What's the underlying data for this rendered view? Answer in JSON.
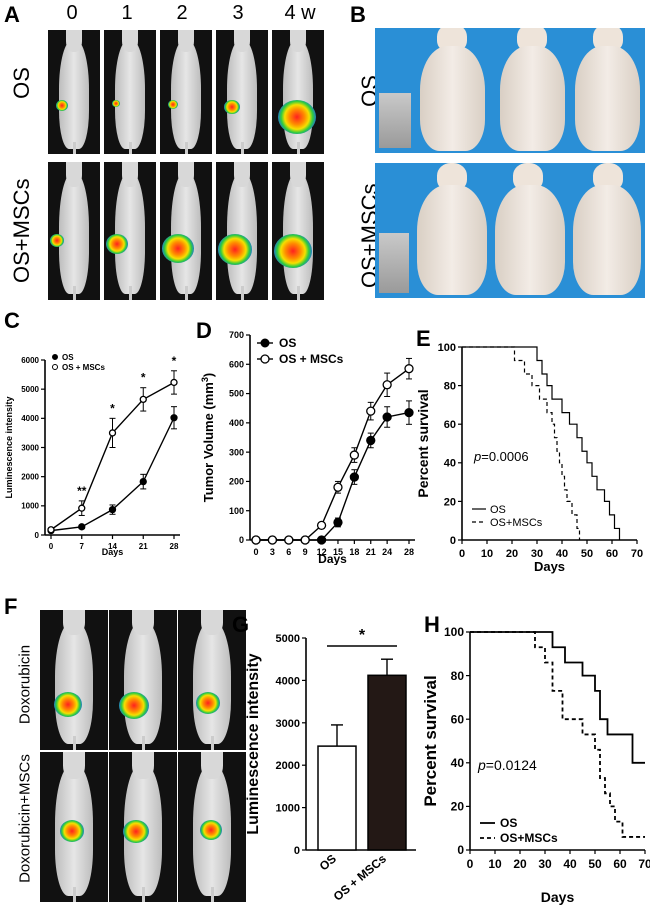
{
  "panels": {
    "A": {
      "letter": "A",
      "weeks": [
        "0",
        "1",
        "2",
        "3",
        "4 w"
      ],
      "row_labels": [
        "OS",
        "OS+MSCs"
      ]
    },
    "B": {
      "letter": "B",
      "row_labels": [
        "OS",
        "OS+MSCs"
      ]
    },
    "F": {
      "letter": "F",
      "row_labels": [
        "Doxorubicin",
        "Doxorubicin+MSCs"
      ]
    }
  },
  "chart_data": [
    {
      "panel": "C",
      "type": "line",
      "xlabel": "Days",
      "ylabel": "Luminescence intensity",
      "x": [
        0,
        7,
        14,
        21,
        28
      ],
      "xticks": [
        "0",
        "7",
        "14",
        "21",
        "28"
      ],
      "ylim": [
        0,
        6000
      ],
      "yticks": [
        "0",
        "1000",
        "2000",
        "3000",
        "4000",
        "5000",
        "6000"
      ],
      "series": [
        {
          "name": "OS",
          "values": [
            150,
            280,
            870,
            1830,
            4020
          ],
          "errors": [
            40,
            60,
            160,
            250,
            380
          ],
          "marker": "filled"
        },
        {
          "name": "OS + MSCs",
          "values": [
            180,
            920,
            3500,
            4650,
            5230
          ],
          "errors": [
            50,
            250,
            500,
            400,
            400
          ],
          "marker": "open"
        }
      ],
      "annotations": [
        "**",
        "*",
        "*",
        "*"
      ],
      "legend_position": "top-left"
    },
    {
      "panel": "D",
      "type": "line",
      "xlabel": "Days",
      "ylabel": "Tumor Volume (mm3)",
      "x": [
        0,
        3,
        6,
        9,
        12,
        15,
        18,
        21,
        24,
        28
      ],
      "xticks": [
        "0",
        "3",
        "6",
        "9",
        "12",
        "15",
        "18",
        "21",
        "24",
        "28"
      ],
      "ylim": [
        0,
        700
      ],
      "yticks": [
        "0",
        "100",
        "200",
        "300",
        "400",
        "500",
        "600",
        "700"
      ],
      "series": [
        {
          "name": "OS",
          "values": [
            0,
            0,
            0,
            0,
            0,
            60,
            215,
            340,
            420,
            435
          ],
          "errors": [
            0,
            0,
            0,
            0,
            0,
            15,
            25,
            25,
            35,
            40
          ],
          "marker": "filled"
        },
        {
          "name": "OS + MSCs",
          "values": [
            0,
            0,
            0,
            0,
            50,
            180,
            290,
            440,
            530,
            585
          ],
          "errors": [
            0,
            0,
            0,
            0,
            10,
            20,
            25,
            30,
            40,
            35
          ],
          "marker": "open"
        }
      ],
      "legend_position": "top-left"
    },
    {
      "panel": "E",
      "type": "line",
      "xlabel": "Days",
      "ylabel": "Percent survival",
      "xlim": [
        0,
        70
      ],
      "ylim": [
        0,
        100
      ],
      "xticks": [
        "0",
        "10",
        "20",
        "30",
        "40",
        "50",
        "60",
        "70"
      ],
      "yticks": [
        "0",
        "20",
        "40",
        "60",
        "80",
        "100"
      ],
      "annotation": "p=0.0006",
      "series": [
        {
          "name": "OS",
          "style": "solid",
          "steps": [
            [
              0,
              100
            ],
            [
              30,
              100
            ],
            [
              30,
              93
            ],
            [
              32,
              93
            ],
            [
              32,
              86
            ],
            [
              34,
              86
            ],
            [
              34,
              80
            ],
            [
              36,
              80
            ],
            [
              36,
              73
            ],
            [
              40,
              73
            ],
            [
              40,
              66
            ],
            [
              43,
              66
            ],
            [
              43,
              60
            ],
            [
              46,
              60
            ],
            [
              46,
              53
            ],
            [
              48,
              53
            ],
            [
              48,
              46
            ],
            [
              50,
              46
            ],
            [
              50,
              40
            ],
            [
              52,
              40
            ],
            [
              52,
              33
            ],
            [
              54,
              33
            ],
            [
              54,
              26
            ],
            [
              57,
              26
            ],
            [
              57,
              20
            ],
            [
              59,
              20
            ],
            [
              59,
              13
            ],
            [
              61,
              13
            ],
            [
              61,
              6
            ],
            [
              63,
              6
            ],
            [
              63,
              0
            ]
          ]
        },
        {
          "name": "OS+MSCs",
          "style": "dashed",
          "steps": [
            [
              0,
              100
            ],
            [
              21,
              100
            ],
            [
              21,
              93
            ],
            [
              25,
              93
            ],
            [
              25,
              86
            ],
            [
              28,
              86
            ],
            [
              28,
              80
            ],
            [
              31,
              80
            ],
            [
              31,
              73
            ],
            [
              34,
              73
            ],
            [
              34,
              66
            ],
            [
              36,
              66
            ],
            [
              36,
              60
            ],
            [
              37,
              60
            ],
            [
              37,
              53
            ],
            [
              38,
              53
            ],
            [
              38,
              46
            ],
            [
              39,
              46
            ],
            [
              39,
              40
            ],
            [
              40,
              40
            ],
            [
              40,
              33
            ],
            [
              41,
              33
            ],
            [
              41,
              26
            ],
            [
              42,
              26
            ],
            [
              42,
              20
            ],
            [
              44,
              20
            ],
            [
              44,
              13
            ],
            [
              46,
              13
            ],
            [
              46,
              6
            ],
            [
              47,
              6
            ],
            [
              47,
              0
            ]
          ]
        }
      ],
      "legend_position": "bottom-left"
    },
    {
      "panel": "G",
      "type": "bar",
      "categories": [
        "OS",
        "OS + MSCs"
      ],
      "values": [
        2450,
        4120
      ],
      "errors": [
        500,
        380
      ],
      "ylabel": "Luminescence intensity",
      "ylim": [
        0,
        5000
      ],
      "yticks": [
        "0",
        "1000",
        "2000",
        "3000",
        "4000",
        "5000"
      ],
      "annotation": "*",
      "colors": [
        "#ffffff",
        "#231815"
      ]
    },
    {
      "panel": "H",
      "type": "line",
      "xlabel": "Days",
      "ylabel": "Percent survival",
      "xlim": [
        0,
        70
      ],
      "ylim": [
        0,
        100
      ],
      "xticks": [
        "0",
        "10",
        "20",
        "30",
        "40",
        "50",
        "60",
        "70"
      ],
      "yticks": [
        "0",
        "20",
        "40",
        "60",
        "80",
        "100"
      ],
      "annotation": "p=0.0124",
      "series": [
        {
          "name": "OS",
          "style": "solid",
          "steps": [
            [
              0,
              100
            ],
            [
              33,
              100
            ],
            [
              33,
              93
            ],
            [
              38,
              93
            ],
            [
              38,
              86
            ],
            [
              45,
              86
            ],
            [
              45,
              80
            ],
            [
              50,
              80
            ],
            [
              50,
              73
            ],
            [
              52,
              73
            ],
            [
              52,
              60
            ],
            [
              55,
              60
            ],
            [
              55,
              53
            ],
            [
              65,
              53
            ],
            [
              65,
              40
            ],
            [
              70,
              40
            ]
          ]
        },
        {
          "name": "OS+MSCs",
          "style": "dashed",
          "steps": [
            [
              0,
              100
            ],
            [
              26,
              100
            ],
            [
              26,
              93
            ],
            [
              30,
              93
            ],
            [
              30,
              86
            ],
            [
              33,
              86
            ],
            [
              33,
              73
            ],
            [
              37,
              73
            ],
            [
              37,
              60
            ],
            [
              45,
              60
            ],
            [
              45,
              53
            ],
            [
              50,
              53
            ],
            [
              50,
              46
            ],
            [
              52,
              46
            ],
            [
              52,
              33
            ],
            [
              54,
              33
            ],
            [
              54,
              26
            ],
            [
              56,
              26
            ],
            [
              56,
              20
            ],
            [
              58,
              20
            ],
            [
              58,
              13
            ],
            [
              61,
              13
            ],
            [
              61,
              6
            ],
            [
              70,
              6
            ]
          ]
        }
      ],
      "legend_position": "bottom-left"
    }
  ]
}
